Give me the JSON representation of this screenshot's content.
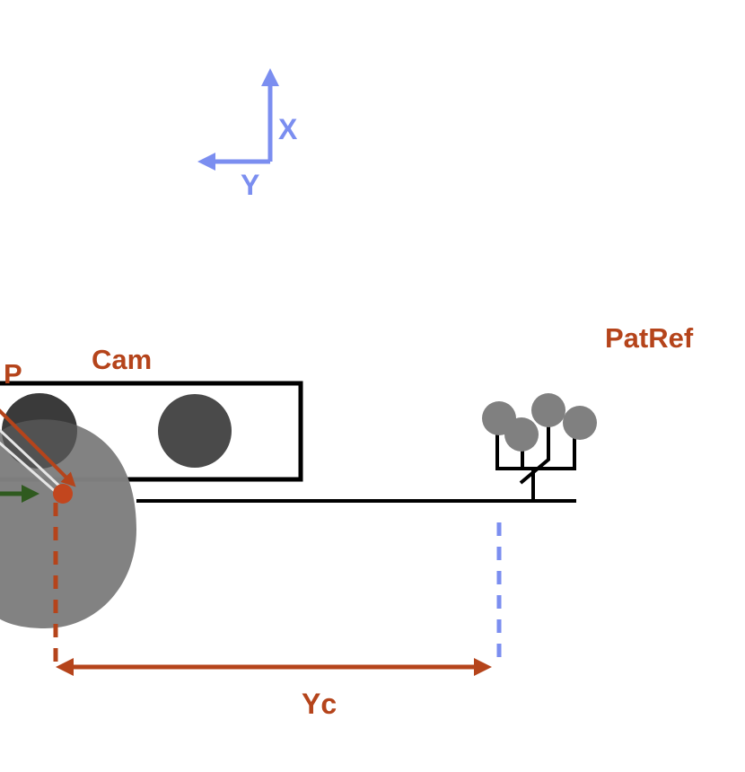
{
  "axes": {
    "x_label": "X",
    "y_label": "Y",
    "color": "#7b8ef0"
  },
  "labels": {
    "cam": "Cam",
    "point": "P",
    "patref": "PatRef",
    "yc": "Yc"
  },
  "colors": {
    "accent": "#b5441b",
    "frame": "#000000",
    "body": "#7f7f7f",
    "lens": "#4a4a4a",
    "marker": "#808080",
    "green_arrow": "#2f5a1f",
    "dashed_blue": "#7b8ef0"
  }
}
